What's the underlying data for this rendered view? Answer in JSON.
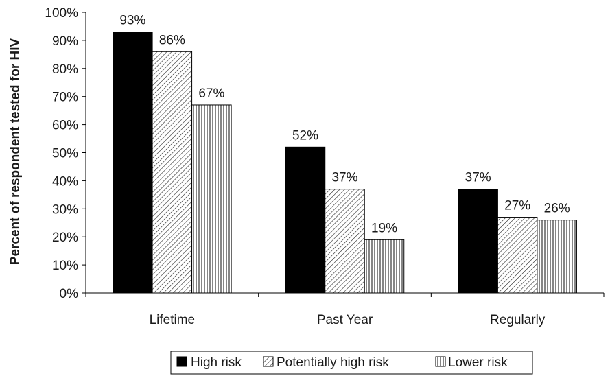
{
  "chart_data": {
    "type": "bar",
    "title": "",
    "xlabel": "",
    "ylabel": "Percent of respondent tested for HIV",
    "ylim": [
      0,
      100
    ],
    "y_ticks": [
      "0%",
      "10%",
      "20%",
      "30%",
      "40%",
      "50%",
      "60%",
      "70%",
      "80%",
      "90%",
      "100%"
    ],
    "categories": [
      "Lifetime",
      "Past Year",
      "Regularly"
    ],
    "series": [
      {
        "name": "High risk",
        "values": [
          93,
          52,
          37
        ],
        "labels": [
          "93%",
          "52%",
          "37%"
        ],
        "fill": "solid",
        "color": "#000000"
      },
      {
        "name": "Potentially high risk",
        "values": [
          86,
          37,
          27
        ],
        "labels": [
          "86%",
          "37%",
          "27%"
        ],
        "fill": "diagonal-hatch",
        "color": "#000000"
      },
      {
        "name": "Lower risk",
        "values": [
          67,
          19,
          26
        ],
        "labels": [
          "67%",
          "19%",
          "26%"
        ],
        "fill": "vertical-stripes",
        "color": "#000000"
      }
    ],
    "grid": false,
    "legend_position": "bottom"
  }
}
